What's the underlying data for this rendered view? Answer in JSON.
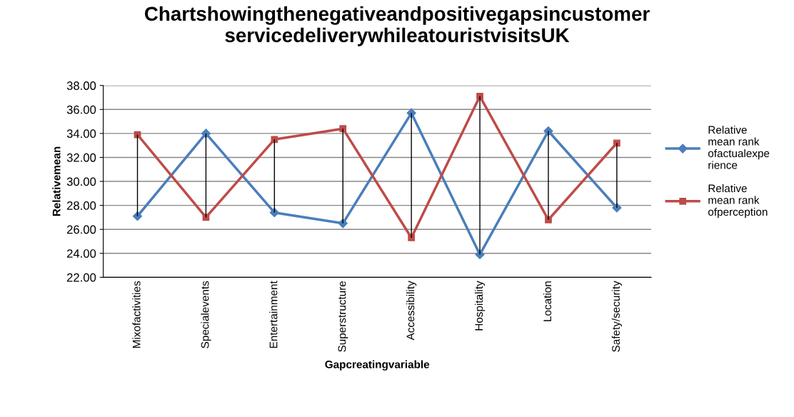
{
  "chart_data": {
    "type": "line",
    "title": "Chartshowingthenegativeandpositivegapsincustomer servicedeliverywhileatouristvisitsUK",
    "xlabel": "Gapcreatingvariable",
    "ylabel": "Relativemean",
    "categories": [
      "Mixofactivities",
      "Specialevents",
      "Entertainment",
      "Superstructure",
      "Accessibility",
      "Hospitality",
      "Location",
      "Safety/security"
    ],
    "series": [
      {
        "name": "Relative\nmean rank\nofactualexpe\nrience",
        "color": "#4a7ebb",
        "marker": "diamond",
        "values": [
          27.1,
          34.0,
          27.4,
          26.5,
          35.7,
          23.9,
          34.2,
          27.8
        ],
        "errors": [
          [
            27.1,
            33.9
          ],
          [
            27.0,
            34.0
          ],
          [
            27.4,
            33.5
          ],
          [
            26.5,
            34.4
          ],
          [
            25.3,
            35.7
          ],
          [
            23.9,
            37.1
          ],
          [
            26.8,
            34.2
          ],
          [
            27.8,
            33.2
          ]
        ]
      },
      {
        "name": "Relative\nmean rank\nofperception",
        "color": "#be4b48",
        "marker": "square",
        "values": [
          33.9,
          27.0,
          33.5,
          34.4,
          25.3,
          37.1,
          26.8,
          33.2
        ]
      }
    ],
    "ylim": [
      22,
      38
    ],
    "yticks": [
      {
        "value": 22,
        "label": "22.00"
      },
      {
        "value": 24,
        "label": "24.00"
      },
      {
        "value": 26,
        "label": "26.00"
      },
      {
        "value": 28,
        "label": "28.00"
      },
      {
        "value": 30,
        "label": "30.00"
      },
      {
        "value": 32,
        "label": "32.00"
      },
      {
        "value": 34,
        "label": "34.00"
      },
      {
        "value": 36,
        "label": "36.00"
      },
      {
        "value": 38,
        "label": "38.00"
      }
    ],
    "grid": "y",
    "legend": "right",
    "line_style": "solid"
  }
}
